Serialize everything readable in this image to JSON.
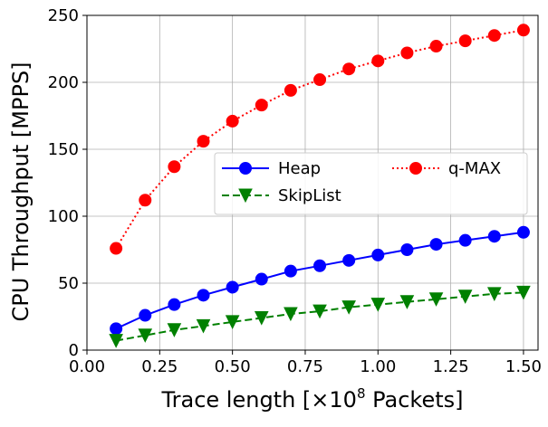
{
  "chart_data": {
    "type": "line",
    "title": "",
    "xlabel": {
      "prefix": "Trace length [×10",
      "exponent": "8",
      "suffix": " Packets]"
    },
    "ylabel": "CPU Throughput [MPPS]",
    "xlim": [
      0.0,
      1.55
    ],
    "ylim": [
      0,
      250
    ],
    "xticks": [
      0.0,
      0.25,
      0.5,
      0.75,
      1.0,
      1.25,
      1.5
    ],
    "xtick_labels": [
      "0.00",
      "0.25",
      "0.50",
      "0.75",
      "1.00",
      "1.25",
      "1.50"
    ],
    "yticks": [
      0,
      50,
      100,
      150,
      200,
      250
    ],
    "ytick_labels": [
      "0",
      "50",
      "100",
      "150",
      "200",
      "250"
    ],
    "grid": true,
    "legend_position": "center-right",
    "x": [
      0.1,
      0.2,
      0.3,
      0.4,
      0.5,
      0.6,
      0.7,
      0.8,
      0.9,
      1.0,
      1.1,
      1.2,
      1.3,
      1.4,
      1.5
    ],
    "series": [
      {
        "name": "Heap",
        "color": "#0000ff",
        "marker": "circle",
        "linestyle": "solid",
        "values": [
          16,
          26,
          34,
          41,
          47,
          53,
          59,
          63,
          67,
          71,
          75,
          79,
          82,
          85,
          88
        ]
      },
      {
        "name": "SkipList",
        "color": "#008000",
        "marker": "triangle-down",
        "linestyle": "dashed",
        "values": [
          7,
          11,
          15,
          18,
          21,
          24,
          27,
          29,
          32,
          34,
          36,
          38,
          40,
          42,
          43
        ]
      },
      {
        "name": "q-MAX",
        "color": "#ff0000",
        "marker": "circle",
        "linestyle": "dotted",
        "values": [
          76,
          112,
          137,
          156,
          171,
          183,
          194,
          202,
          210,
          216,
          222,
          227,
          231,
          235,
          239
        ]
      }
    ]
  }
}
